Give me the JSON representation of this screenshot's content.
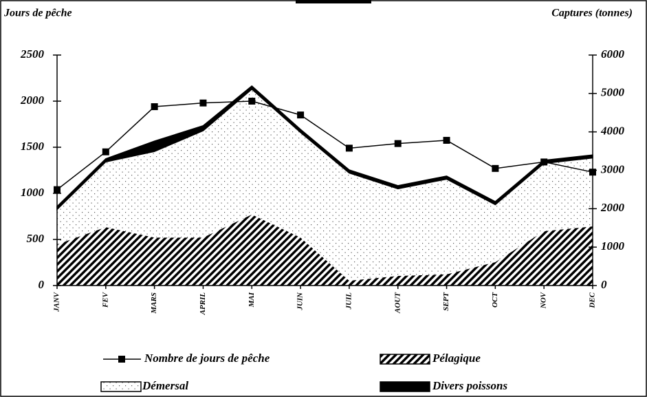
{
  "chart_data": {
    "type": "line-area",
    "ylabel": "Jours de pêche",
    "y2label": "Captures (tonnes)",
    "categories": [
      "JANV",
      "FEV",
      "MARS",
      "APRIL",
      "MAI",
      "JUIN",
      "JUIL",
      "AOUT",
      "SEPT",
      "OCT",
      "NOV",
      "DEC"
    ],
    "ylim": [
      0,
      2500
    ],
    "yticks": [
      0,
      500,
      1000,
      1500,
      2000,
      2500
    ],
    "y2lim": [
      0,
      6000
    ],
    "y2ticks": [
      0,
      1000,
      2000,
      3000,
      4000,
      5000,
      6000
    ],
    "stacked": true,
    "series": [
      {
        "name": "Nombre de jours de pêche",
        "type": "line",
        "axis": "y",
        "color": "#000000",
        "marker": "square",
        "values": [
          1040,
          1450,
          1940,
          1980,
          2000,
          1850,
          1490,
          1540,
          1575,
          1270,
          1340,
          1230
        ]
      },
      {
        "name": "Pélagique",
        "type": "area",
        "axis": "y2",
        "color": "#000000",
        "pattern": "hatch",
        "values": [
          1070,
          1520,
          1250,
          1250,
          1850,
          1250,
          125,
          250,
          290,
          610,
          1415,
          1540
        ]
      },
      {
        "name": "Démersal",
        "type": "area",
        "axis": "y2",
        "color": "#000000",
        "pattern": "dots",
        "values": [
          910,
          1700,
          2240,
          2780,
          3260,
          2735,
          2805,
          2270,
          2480,
          1495,
          1765,
          1780
        ]
      },
      {
        "name": "Divers poissons",
        "type": "area",
        "axis": "y2",
        "color": "#000000",
        "pattern": "solid",
        "values": [
          80,
          80,
          270,
          130,
          85,
          80,
          80,
          80,
          80,
          80,
          80,
          80
        ]
      }
    ]
  }
}
